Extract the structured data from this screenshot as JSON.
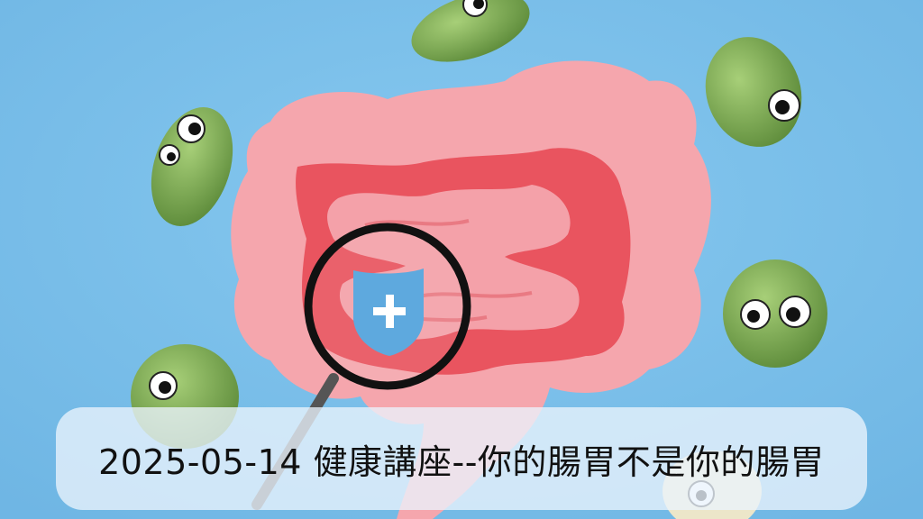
{
  "caption": {
    "text": "2025-05-14 健康講座--你的腸胃不是你的腸胃"
  },
  "colors": {
    "background": "#7cc0ea",
    "intestine": "#f5a6ad",
    "intestine_inner": "#e9545f",
    "shield": "#5ea9de",
    "bacteria": "#7fae52",
    "caption_bar": "#ebf4fc"
  },
  "icons": [
    "medical-shield-icon",
    "magnifying-glass-icon",
    "bacteria-figure"
  ]
}
